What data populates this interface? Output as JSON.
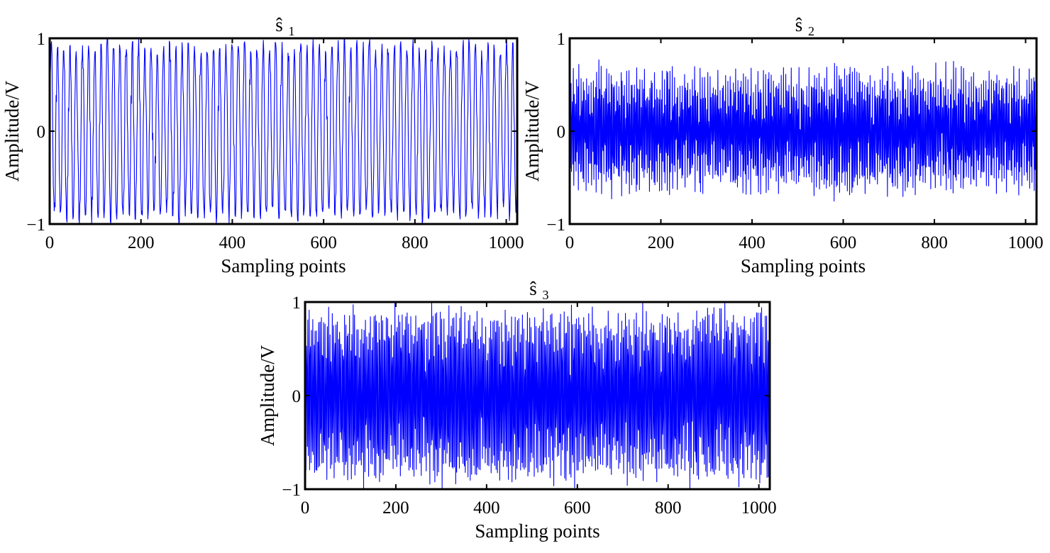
{
  "figure": {
    "background_color": "#ffffff",
    "line_color": "#0000ff"
  },
  "chart_data": [
    {
      "id": "s1",
      "type": "line",
      "title": "ŝ",
      "title_base": "s",
      "title_subscript": "1",
      "xlabel": "Sampling points",
      "ylabel": "Amplitude/V",
      "xlim": [
        0,
        1024
      ],
      "ylim": [
        -1,
        1
      ],
      "xticks": [
        0,
        200,
        400,
        600,
        800,
        1000
      ],
      "xtick_labels": [
        "0",
        "200",
        "400",
        "600",
        "800",
        "1000"
      ],
      "yticks": [
        -1,
        0,
        1
      ],
      "ytick_labels": [
        "−1",
        "0",
        "1"
      ],
      "grid": false,
      "legend": "none",
      "series": [
        {
          "name": "ŝ1",
          "n_samples": 1024,
          "description_kind": "near full-scale periodic oscillation",
          "carrier_cycles_per_sample": 0.0732,
          "envelope_min": 0.85,
          "envelope_max": 1.0
        }
      ]
    },
    {
      "id": "s2",
      "type": "line",
      "title": "ŝ",
      "title_base": "s",
      "title_subscript": "2",
      "xlabel": "Sampling points",
      "ylabel": "Amplitude/V",
      "xlim": [
        0,
        1024
      ],
      "ylim": [
        -1,
        1
      ],
      "xticks": [
        0,
        200,
        400,
        600,
        800,
        1000
      ],
      "xtick_labels": [
        "0",
        "200",
        "400",
        "600",
        "800",
        "1000"
      ],
      "yticks": [
        -1,
        0,
        1
      ],
      "ytick_labels": [
        "−1",
        "0",
        "1"
      ],
      "grid": false,
      "legend": "none",
      "series": [
        {
          "name": "ŝ2",
          "n_samples": 1024,
          "description_kind": "noisy oscillation",
          "carrier_cycles_per_sample": 0.41,
          "envelope_min": 0.45,
          "envelope_max": 0.72
        }
      ]
    },
    {
      "id": "s3",
      "type": "line",
      "title": "ŝ",
      "title_base": "s",
      "title_subscript": "3",
      "xlabel": "Sampling points",
      "ylabel": "Amplitude/V",
      "xlim": [
        0,
        1024
      ],
      "ylim": [
        -1,
        1
      ],
      "xticks": [
        0,
        200,
        400,
        600,
        800,
        1000
      ],
      "xtick_labels": [
        "0",
        "200",
        "400",
        "600",
        "800",
        "1000"
      ],
      "yticks": [
        -1,
        0,
        1
      ],
      "ytick_labels": [
        "−1",
        "0",
        "1"
      ],
      "grid": false,
      "legend": "none",
      "series": [
        {
          "name": "ŝ3",
          "n_samples": 1024,
          "description_kind": "dense high-frequency oscillation",
          "carrier_cycles_per_sample": 0.37,
          "envelope_min": 0.72,
          "envelope_max": 1.0
        }
      ]
    }
  ]
}
